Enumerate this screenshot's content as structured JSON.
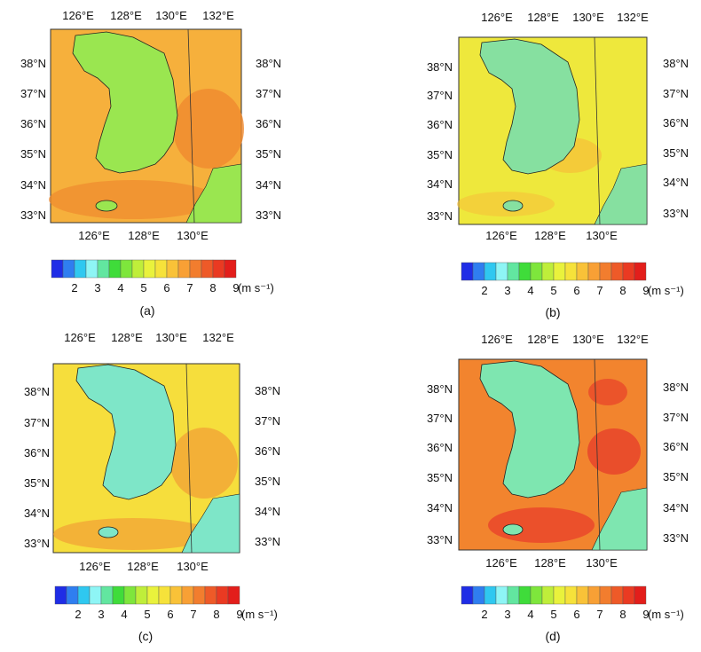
{
  "colorbar": {
    "colors": [
      "#1f2de6",
      "#2f7ef0",
      "#2fc8f0",
      "#8ef5f5",
      "#62e6a0",
      "#3fdc3a",
      "#7ee63c",
      "#bfee3a",
      "#e9f23c",
      "#f6e23a",
      "#f9c238",
      "#f8a035",
      "#f27d2e",
      "#ee5a28",
      "#ea3a22",
      "#e31e1b"
    ],
    "tick_labels": [
      "2",
      "3",
      "4",
      "5",
      "6",
      "7",
      "8",
      "9"
    ],
    "unit": "(m s⁻¹)"
  },
  "axes": {
    "top_lon": [
      "126°E",
      "128°E",
      "130°E",
      "132°E"
    ],
    "bottom_lon": [
      "126°E",
      "128°E",
      "130°E"
    ],
    "left_lat": [
      "38°N",
      "37°N",
      "36°N",
      "35°N",
      "34°N",
      "33°N"
    ],
    "right_lat": [
      "38°N",
      "37°N",
      "36°N",
      "35°N",
      "34°N",
      "33°N"
    ]
  },
  "panels": [
    {
      "label": "(a)",
      "sea_color": "#f6b03c",
      "accent_color": "#f08a2e",
      "land_color": "#9ae650"
    },
    {
      "label": "(b)",
      "sea_color": "#eee83c",
      "accent_color": "#f6c238",
      "land_color": "#86e0a0"
    },
    {
      "label": "(c)",
      "sea_color": "#f6de3c",
      "accent_color": "#f2a035",
      "land_color": "#7ee6c8"
    },
    {
      "label": "(d)",
      "sea_color": "#f2842e",
      "accent_color": "#e8442a",
      "land_color": "#7ee6b0"
    }
  ]
}
